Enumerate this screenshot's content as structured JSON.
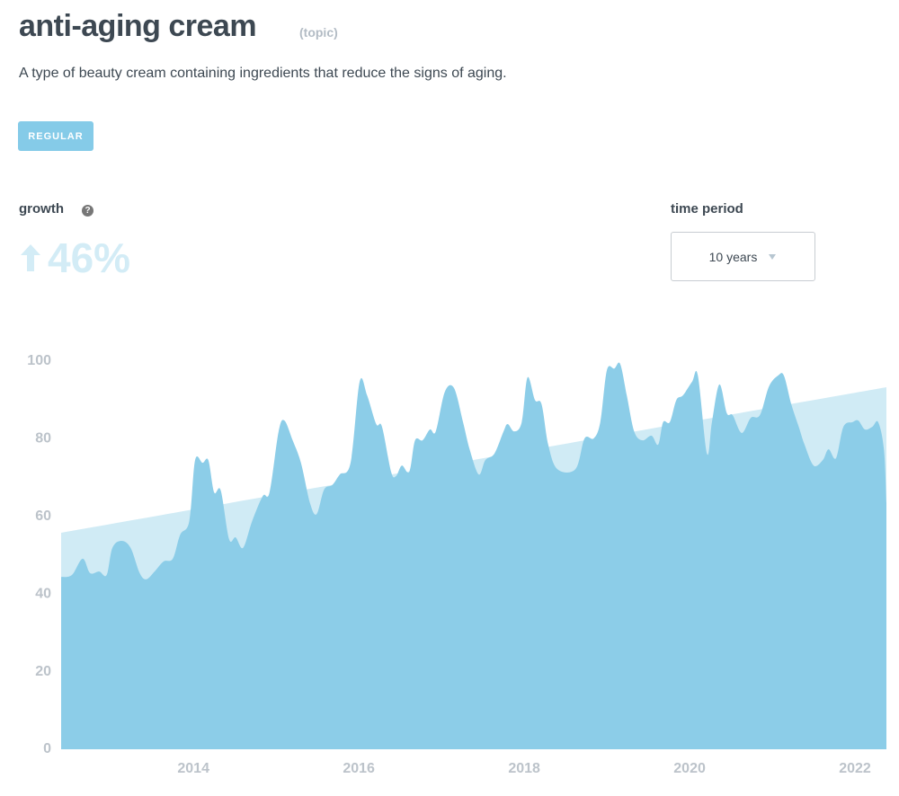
{
  "header": {
    "title": "anti-aging cream",
    "kind": "(topic)",
    "description": "A type of beauty cream containing ingredients that reduce the signs of aging.",
    "badge": "REGULAR"
  },
  "growth": {
    "label": "growth",
    "help": "?",
    "value": "46%"
  },
  "time_period": {
    "label": "time period",
    "selected": "10 years"
  },
  "chart_data": {
    "type": "area",
    "xlim": [
      2012.4,
      2022.38
    ],
    "xticks": [
      2014,
      2016,
      2018,
      2020,
      2022
    ],
    "ylim": [
      0,
      100
    ],
    "yticks": [
      0,
      20,
      40,
      60,
      80,
      100
    ],
    "series": [
      {
        "color": "#d0ebf5",
        "x": [
          2012.4,
          2022.38
        ],
        "values": [
          55.8,
          93.3
        ]
      },
      {
        "color": "#8ccde8",
        "x": [
          2012.4,
          2012.53,
          2012.66,
          2012.75,
          2012.86,
          2012.95,
          2013.02,
          2013.13,
          2013.24,
          2013.35,
          2013.43,
          2013.53,
          2013.64,
          2013.75,
          2013.84,
          2013.95,
          2014.02,
          2014.11,
          2014.18,
          2014.25,
          2014.33,
          2014.43,
          2014.51,
          2014.6,
          2014.71,
          2014.84,
          2014.92,
          2015.03,
          2015.1,
          2015.2,
          2015.3,
          2015.41,
          2015.49,
          2015.58,
          2015.68,
          2015.77,
          2015.9,
          2016.01,
          2016.1,
          2016.21,
          2016.28,
          2016.39,
          2016.45,
          2016.52,
          2016.61,
          2016.68,
          2016.77,
          2016.86,
          2016.93,
          2017.04,
          2017.15,
          2017.26,
          2017.34,
          2017.45,
          2017.53,
          2017.64,
          2017.75,
          2017.8,
          2017.88,
          2017.97,
          2018.04,
          2018.13,
          2018.21,
          2018.29,
          2018.4,
          2018.62,
          2018.73,
          2018.84,
          2018.92,
          2019.0,
          2019.09,
          2019.16,
          2019.24,
          2019.33,
          2019.43,
          2019.54,
          2019.62,
          2019.68,
          2019.76,
          2019.84,
          2019.92,
          2020.03,
          2020.1,
          2020.21,
          2020.27,
          2020.36,
          2020.45,
          2020.52,
          2020.63,
          2020.74,
          2020.85,
          2020.96,
          2021.07,
          2021.14,
          2021.23,
          2021.32,
          2021.39,
          2021.5,
          2021.61,
          2021.68,
          2021.77,
          2021.86,
          2021.97,
          2022.04,
          2022.12,
          2022.21,
          2022.28,
          2022.35,
          2022.38
        ],
        "values": [
          44.4,
          44.9,
          49.1,
          45.4,
          45.8,
          44.9,
          51.9,
          53.7,
          51.9,
          45.4,
          43.8,
          45.8,
          48.4,
          49.1,
          55.3,
          58.8,
          74.5,
          73.8,
          74.5,
          66.2,
          66.7,
          54.2,
          54.6,
          51.9,
          58.8,
          65.3,
          66.2,
          81.9,
          84.7,
          79.6,
          73.8,
          63.4,
          60.6,
          66.9,
          68.1,
          70.8,
          73.8,
          94.7,
          91.2,
          83.8,
          83.1,
          71.5,
          70.4,
          73.1,
          71.5,
          79.6,
          79.6,
          82.4,
          81.9,
          92.1,
          93.1,
          84.3,
          77.3,
          70.8,
          74.5,
          76.2,
          81.9,
          83.8,
          81.9,
          84.3,
          95.8,
          90.0,
          88.9,
          78.5,
          72.2,
          72.2,
          80.1,
          80.1,
          84.3,
          97.7,
          98.1,
          99.3,
          91.2,
          81.9,
          79.6,
          80.8,
          78.5,
          84.3,
          84.3,
          90.0,
          91.2,
          94.7,
          96.3,
          76.2,
          84.3,
          94.0,
          86.6,
          86.1,
          81.5,
          85.4,
          86.1,
          93.5,
          96.3,
          96.3,
          88.9,
          83.1,
          78.5,
          73.1,
          74.5,
          77.3,
          75.0,
          83.1,
          84.3,
          84.7,
          82.4,
          83.1,
          84.3,
          77.3,
          63.4
        ]
      }
    ]
  }
}
